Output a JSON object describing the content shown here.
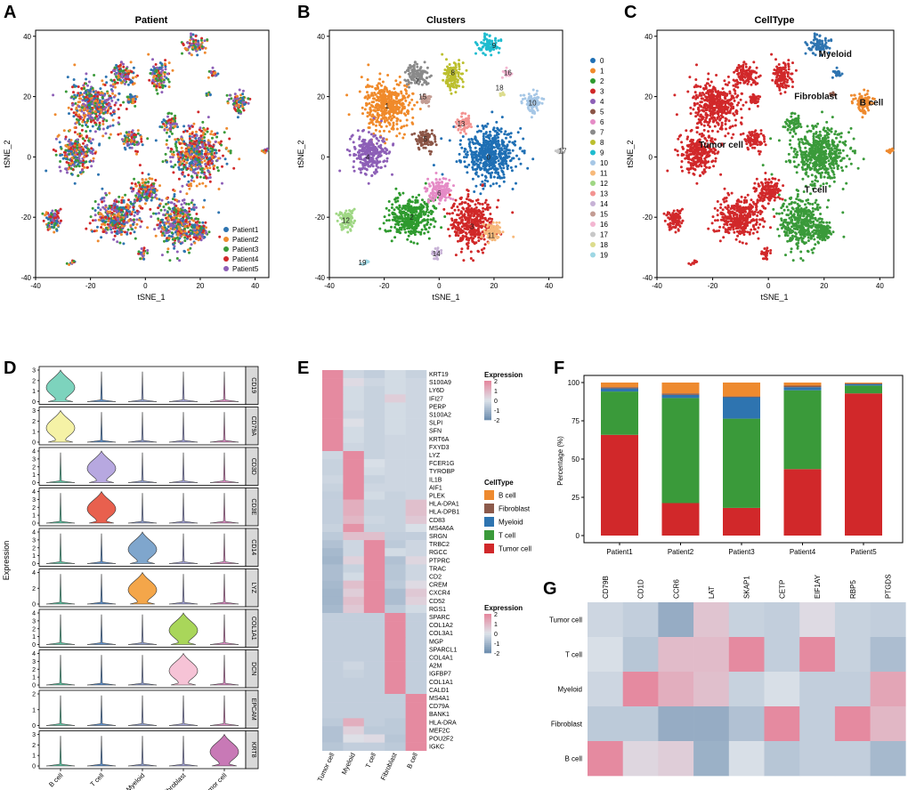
{
  "panels": {
    "A": {
      "letter": "A",
      "chart_data": {
        "type": "scatter",
        "title": "Patient",
        "xlabel": "tSNE_1",
        "ylabel": "tSNE_2",
        "xlim": [
          -40,
          45
        ],
        "ylim": [
          -40,
          42
        ],
        "xticks": [
          "-40",
          "-20",
          "0",
          "20",
          "40"
        ],
        "yticks": [
          "40",
          "20",
          "0",
          "-20",
          "-40"
        ],
        "legend": [
          "Patient1",
          "Patient2",
          "Patient3",
          "Patient4",
          "Patient5"
        ],
        "legend_position": "bottom-right"
      }
    },
    "B": {
      "letter": "B",
      "chart_data": {
        "type": "scatter",
        "title": "Clusters",
        "xlabel": "tSNE_1",
        "ylabel": "tSNE_2",
        "xlim": [
          -40,
          45
        ],
        "ylim": [
          -40,
          42
        ],
        "xticks": [
          "-40",
          "-20",
          "0",
          "20",
          "40"
        ],
        "yticks": [
          "40",
          "20",
          "0",
          "-20",
          "-40"
        ],
        "legend": [
          "0",
          "1",
          "2",
          "3",
          "4",
          "5",
          "6",
          "7",
          "8",
          "9",
          "10",
          "11",
          "12",
          "13",
          "14",
          "15",
          "16",
          "17",
          "18",
          "19"
        ],
        "cluster_labels": [
          {
            "label": "0",
            "x": 18,
            "y": 0
          },
          {
            "label": "1",
            "x": -19,
            "y": 17
          },
          {
            "label": "2",
            "x": -10,
            "y": -20
          },
          {
            "label": "3",
            "x": 12,
            "y": -23
          },
          {
            "label": "4",
            "x": -26,
            "y": 0
          },
          {
            "label": "5",
            "x": -5,
            "y": 6
          },
          {
            "label": "6",
            "x": 0,
            "y": -12
          },
          {
            "label": "7",
            "x": -8,
            "y": 25
          },
          {
            "label": "8",
            "x": 5,
            "y": 28
          },
          {
            "label": "9",
            "x": 20,
            "y": 37
          },
          {
            "label": "10",
            "x": 34,
            "y": 18
          },
          {
            "label": "11",
            "x": 19,
            "y": -26
          },
          {
            "label": "12",
            "x": -34,
            "y": -21
          },
          {
            "label": "13",
            "x": 8,
            "y": 11
          },
          {
            "label": "14",
            "x": -1,
            "y": -32
          },
          {
            "label": "15",
            "x": -6,
            "y": 20
          },
          {
            "label": "16",
            "x": 25,
            "y": 28
          },
          {
            "label": "17",
            "x": 45,
            "y": 2
          },
          {
            "label": "18",
            "x": 22,
            "y": 23
          },
          {
            "label": "19",
            "x": -28,
            "y": -35
          }
        ]
      }
    },
    "C": {
      "letter": "C",
      "chart_data": {
        "type": "scatter",
        "title": "CellType",
        "xlabel": "tSNE_1",
        "ylabel": "tSNE_2",
        "xlim": [
          -40,
          45
        ],
        "ylim": [
          -40,
          42
        ],
        "xticks": [
          "-40",
          "-20",
          "0",
          "20",
          "40"
        ],
        "yticks": [
          "40",
          "20",
          "0",
          "-20",
          "-40"
        ],
        "cell_labels": [
          {
            "label": "Myeloid",
            "x": 24,
            "y": 34
          },
          {
            "label": "Fibroblast",
            "x": 17,
            "y": 20
          },
          {
            "label": "B cell",
            "x": 37,
            "y": 18
          },
          {
            "label": "Tumor cell",
            "x": -17,
            "y": 4
          },
          {
            "label": "T cell",
            "x": 17,
            "y": -11
          }
        ]
      }
    },
    "D": {
      "letter": "D",
      "chart_data": {
        "type": "violin",
        "ylabel": "Expression",
        "genes": [
          "CD19",
          "CD79A",
          "CD3D",
          "CD3E",
          "CD14",
          "LYZ",
          "COL1A1",
          "DCN",
          "EPCAM",
          "KRT8"
        ],
        "ymax": [
          3,
          3,
          4,
          4,
          4,
          4,
          4,
          4,
          2,
          3
        ],
        "yticks": [
          [
            "0",
            "1",
            "2",
            "3"
          ],
          [
            "0",
            "1",
            "2",
            "3"
          ],
          [
            "0",
            "1",
            "2",
            "3",
            "4"
          ],
          [
            "0",
            "1",
            "2",
            "3",
            "4"
          ],
          [
            "0",
            "1",
            "2",
            "3",
            "4"
          ],
          [
            "0",
            "2",
            "4"
          ],
          [
            "0",
            "1",
            "2",
            "3",
            "4"
          ],
          [
            "0",
            "1",
            "2",
            "3",
            "4"
          ],
          [
            "0",
            "1",
            "2"
          ],
          [
            "0",
            "1",
            "2",
            "3"
          ]
        ],
        "cell_types": [
          "B cell",
          "T cell",
          "Myeloid",
          "Fibroblast",
          "Tumor cell"
        ],
        "cell_colors": [
          "#5fbfa0",
          "#5f8fc8",
          "#8e9bc8",
          "#9f9fd1",
          "#d88bc0"
        ],
        "highlight": [
          {
            "gene": "CD19",
            "type": 0,
            "color": "#7dd3bd"
          },
          {
            "gene": "CD79A",
            "type": 0,
            "color": "#f5f2a6"
          },
          {
            "gene": "CD3D",
            "type": 1,
            "color": "#b7a8e0"
          },
          {
            "gene": "CD3E",
            "type": 1,
            "color": "#e8604e"
          },
          {
            "gene": "CD14",
            "type": 2,
            "color": "#7fa6cd"
          },
          {
            "gene": "LYZ",
            "type": 2,
            "color": "#f4a64a"
          },
          {
            "gene": "COL1A1",
            "type": 3,
            "color": "#a9d65a"
          },
          {
            "gene": "DCN",
            "type": 3,
            "color": "#f6c3d6"
          },
          {
            "gene": "KRT8",
            "type": 4,
            "color": "#c879b6"
          }
        ]
      }
    },
    "E": {
      "letter": "E",
      "chart_data": {
        "type": "heatmap",
        "rows": [
          "KRT19",
          "S100A9",
          "LY6D",
          "IFI27",
          "PERP",
          "S100A2",
          "SLPI",
          "SFN",
          "KRT6A",
          "FXYD3",
          "LYZ",
          "FCER1G",
          "TYROBP",
          "IL1B",
          "AIF1",
          "PLEK",
          "HLA-DPA1",
          "HLA-DPB1",
          "CD83",
          "MS4A6A",
          "SRGN",
          "TRBC2",
          "RGCC",
          "PTPRC",
          "TRAC",
          "CD2",
          "CREM",
          "CXCR4",
          "CD52",
          "RGS1",
          "SPARC",
          "COL1A2",
          "COL3A1",
          "MGP",
          "SPARCL1",
          "COL4A1",
          "A2M",
          "IGFBP7",
          "COL1A1",
          "CALD1",
          "MS4A1",
          "CD79A",
          "BANK1",
          "HLA-DRA",
          "MEF2C",
          "POU2F2",
          "IGKC"
        ],
        "columns": [
          "Tumor cell",
          "Myeloid",
          "T cell",
          "Fibroblast",
          "B cell"
        ],
        "values": [
          [
            2,
            -0.3,
            -0.5,
            -0.2,
            -0.4
          ],
          [
            2,
            0.2,
            -0.3,
            -0.2,
            -0.3
          ],
          [
            2,
            -0.2,
            -0.4,
            -0.2,
            -0.3
          ],
          [
            2,
            -0.2,
            -0.4,
            0.5,
            -0.3
          ],
          [
            2,
            -0.2,
            -0.4,
            -0.2,
            -0.3
          ],
          [
            2,
            -0.3,
            -0.4,
            -0.2,
            -0.3
          ],
          [
            2,
            0.1,
            -0.4,
            -0.2,
            -0.3
          ],
          [
            2,
            -0.2,
            -0.4,
            -0.2,
            -0.3
          ],
          [
            2,
            -0.2,
            -0.4,
            -0.3,
            -0.3
          ],
          [
            2,
            -0.3,
            -0.4,
            -0.3,
            -0.3
          ],
          [
            -0.3,
            2,
            -0.4,
            -0.3,
            -0.3
          ],
          [
            -0.4,
            2,
            -0.1,
            -0.3,
            -0.3
          ],
          [
            -0.4,
            2,
            -0.2,
            -0.3,
            -0.3
          ],
          [
            -0.3,
            2,
            -0.4,
            -0.3,
            -0.3
          ],
          [
            -0.4,
            2,
            -0.3,
            -0.3,
            -0.3
          ],
          [
            -0.5,
            2,
            -0.2,
            -0.4,
            -0.3
          ],
          [
            -0.5,
            1.2,
            -0.4,
            -0.4,
            0.8
          ],
          [
            -0.5,
            1.2,
            -0.4,
            -0.4,
            0.8
          ],
          [
            -0.5,
            1.0,
            -0.3,
            -0.4,
            0.6
          ],
          [
            -0.4,
            1.8,
            -0.4,
            -0.4,
            -0.1
          ],
          [
            -0.6,
            0.8,
            0.8,
            -0.5,
            -0.5
          ],
          [
            -0.8,
            -0.3,
            2,
            -0.6,
            -0.3
          ],
          [
            -1.0,
            -0.3,
            2,
            -0.2,
            -0.3
          ],
          [
            -1.1,
            0.4,
            2,
            -0.8,
            0.3
          ],
          [
            -0.9,
            -0.4,
            2,
            -0.7,
            -0.3
          ],
          [
            -0.9,
            -0.2,
            2,
            -0.7,
            -0.3
          ],
          [
            -1.0,
            0.8,
            2,
            -0.6,
            0.2
          ],
          [
            -1.1,
            0.5,
            2,
            -0.9,
            0.6
          ],
          [
            -1.1,
            0.8,
            2,
            -0.9,
            0.4
          ],
          [
            -1.0,
            0.6,
            2,
            -0.6,
            -0.2
          ],
          [
            -0.5,
            -0.5,
            -0.5,
            2,
            -0.5
          ],
          [
            -0.5,
            -0.5,
            -0.5,
            2,
            -0.5
          ],
          [
            -0.5,
            -0.5,
            -0.5,
            2,
            -0.5
          ],
          [
            -0.5,
            -0.5,
            -0.5,
            2,
            -0.5
          ],
          [
            -0.5,
            -0.5,
            -0.5,
            2,
            -0.5
          ],
          [
            -0.5,
            -0.5,
            -0.5,
            2,
            -0.5
          ],
          [
            -0.5,
            -0.3,
            -0.5,
            2,
            -0.5
          ],
          [
            -0.5,
            -0.4,
            -0.5,
            2,
            -0.5
          ],
          [
            -0.5,
            -0.5,
            -0.5,
            2,
            -0.5
          ],
          [
            -0.5,
            -0.5,
            -0.5,
            2,
            -0.5
          ],
          [
            -0.5,
            -0.5,
            -0.5,
            -0.5,
            2
          ],
          [
            -0.5,
            -0.5,
            -0.5,
            -0.5,
            2
          ],
          [
            -0.5,
            -0.5,
            -0.5,
            -0.5,
            2
          ],
          [
            -0.6,
            1.2,
            -0.5,
            -0.6,
            2
          ],
          [
            -0.8,
            0.4,
            -0.6,
            -0.6,
            2
          ],
          [
            -0.8,
            0.1,
            0.2,
            -0.7,
            2
          ],
          [
            -0.7,
            -0.5,
            -0.5,
            -0.6,
            2
          ]
        ],
        "legend1_title": "Expression",
        "legend1_ticks": [
          "2",
          "1",
          "0",
          "-1",
          "-2"
        ],
        "celltype_legend_title": "CellType",
        "celltype_legend": [
          {
            "label": "B cell",
            "color": "#ee8a2f"
          },
          {
            "label": "Fibroblast",
            "color": "#8c5a4b"
          },
          {
            "label": "Myeloid",
            "color": "#2e74b0"
          },
          {
            "label": "T cell",
            "color": "#3a9a3a"
          },
          {
            "label": "Tumor cell",
            "color": "#d1282a"
          }
        ],
        "legend2_title": "Expression",
        "legend2_ticks": [
          "2",
          "1",
          "0",
          "-1",
          "-2"
        ]
      }
    },
    "F": {
      "letter": "F",
      "chart_data": {
        "type": "bar",
        "stacked": true,
        "ylabel": "Percentage (%)",
        "ylim": [
          0,
          100
        ],
        "yticks": [
          "0",
          "25",
          "50",
          "75",
          "100"
        ],
        "categories": [
          "Patient1",
          "Patient2",
          "Patient3",
          "Patient4",
          "Patient5"
        ],
        "series": [
          {
            "name": "Tumor cell",
            "color": "#d1282a",
            "values": [
              65,
              21,
              18,
              43,
              92
            ]
          },
          {
            "name": "T cell",
            "color": "#3a9a3a",
            "values": [
              28,
              68,
              58,
              51,
              5
            ]
          },
          {
            "name": "Myeloid",
            "color": "#2e74b0",
            "values": [
              2,
              2,
              14,
              2,
              1
            ]
          },
          {
            "name": "Fibroblast",
            "color": "#8c5a4b",
            "values": [
              0.8,
              1,
              0.5,
              1,
              0.5
            ]
          },
          {
            "name": "B cell",
            "color": "#ee8a2f",
            "values": [
              3,
              7,
              9,
              2,
              0.5
            ]
          }
        ]
      }
    },
    "G": {
      "letter": "G",
      "chart_data": {
        "type": "heatmap",
        "columns": [
          "CD79B",
          "CD1D",
          "CCR6",
          "LAT",
          "SKAP1",
          "CETP",
          "EIF1AY",
          "RBP5",
          "PTGDS"
        ],
        "rows": [
          "Tumor cell",
          "T cell",
          "Myeloid",
          "Fibroblast",
          "B cell"
        ],
        "values": [
          [
            -0.3,
            -0.5,
            -1.3,
            0.7,
            -0.4,
            -0.5,
            0.2,
            -0.4,
            -0.5
          ],
          [
            -0.1,
            -0.7,
            0.9,
            0.9,
            2,
            -0.5,
            2,
            -0.4,
            -0.9
          ],
          [
            -0.3,
            2,
            1.2,
            0.8,
            -0.4,
            -0.1,
            -0.5,
            -0.5,
            1.4
          ],
          [
            -0.6,
            -0.6,
            -1.3,
            -1.3,
            -0.8,
            2,
            -0.5,
            2,
            1.0
          ],
          [
            2,
            0.3,
            0.5,
            -1.2,
            -0.1,
            -0.7,
            -0.5,
            -0.5,
            -1.0
          ]
        ]
      }
    }
  }
}
